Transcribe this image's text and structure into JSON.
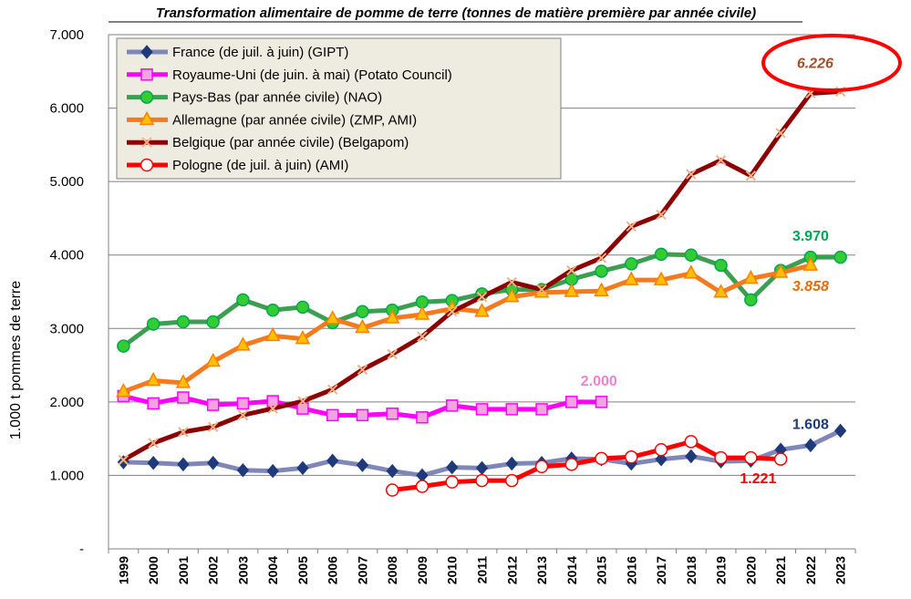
{
  "chart_data": {
    "type": "line",
    "title": "Transformation alimentaire de pomme de terre (tonnes de matière première  par année civile)",
    "xlabel": "",
    "ylabel": "1.000 t pommes de terre",
    "ylim": [
      0,
      7000
    ],
    "y_ticks": [
      "-",
      "1.000",
      "2.000",
      "3.000",
      "4.000",
      "5.000",
      "6.000",
      "7.000"
    ],
    "categories": [
      "1999",
      "2000",
      "2001",
      "2002",
      "2003",
      "2004",
      "2005",
      "2006",
      "2007",
      "2008",
      "2009",
      "2010",
      "2011",
      "2012",
      "2013",
      "2014",
      "2015",
      "2016",
      "2017",
      "2018",
      "2019",
      "2020",
      "2021",
      "2022",
      "2023"
    ],
    "grid": "horizontal",
    "legend_position": "top-left",
    "series": [
      {
        "name": "France (de juil. à juin) (GIPT)",
        "color": "#1F3A7A",
        "line_color": "#7F86B8",
        "marker": "diamond",
        "values": [
          1180,
          1170,
          1150,
          1170,
          1070,
          1060,
          1100,
          1200,
          1140,
          1060,
          1000,
          1110,
          1100,
          1160,
          1170,
          1230,
          1220,
          1160,
          1220,
          1260,
          1190,
          1200,
          1350,
          1410,
          1608
        ]
      },
      {
        "name": "Royaume-Uni (de juin. à mai) (Potato Council)",
        "color": "#FF00FF",
        "line_color": "#FF00FF",
        "marker": "square",
        "marker_fill": "#F5A3E0",
        "values": [
          2080,
          1980,
          2060,
          1960,
          1980,
          2010,
          1910,
          1820,
          1820,
          1840,
          1790,
          1950,
          1900,
          1900,
          1900,
          2000,
          2000,
          null,
          null,
          null,
          null,
          null,
          null,
          null,
          null
        ]
      },
      {
        "name": "Pays-Bas (par année civile) (NAO)",
        "color": "#00A651",
        "line_color": "#3C9E50",
        "marker": "circle",
        "marker_fill": "#33CC33",
        "values": [
          2760,
          3060,
          3090,
          3090,
          3390,
          3250,
          3290,
          3080,
          3230,
          3250,
          3360,
          3380,
          3470,
          3530,
          3530,
          3670,
          3780,
          3880,
          4010,
          4000,
          3860,
          3390,
          3790,
          3970,
          3970
        ]
      },
      {
        "name": "Allemagne (par année civile) (ZMP, AMI)",
        "color": "#FF7F00",
        "line_color": "#F47A20",
        "marker": "triangle",
        "marker_fill": "#FFC000",
        "values": [
          2140,
          2290,
          2260,
          2550,
          2770,
          2900,
          2860,
          3130,
          3010,
          3140,
          3190,
          3270,
          3230,
          3430,
          3490,
          3500,
          3510,
          3660,
          3660,
          3750,
          3490,
          3680,
          3760,
          3858,
          null
        ]
      },
      {
        "name": "Belgique (par année civile) (Belgapom)",
        "color": "#8B0000",
        "line_color": "#8B0000",
        "marker": "x",
        "marker_color": "#F4B183",
        "values": [
          1210,
          1440,
          1590,
          1660,
          1820,
          1910,
          2010,
          2170,
          2440,
          2650,
          2890,
          3230,
          3430,
          3630,
          3530,
          3790,
          3960,
          4390,
          4550,
          5100,
          5290,
          5080,
          5660,
          6200,
          6226
        ]
      },
      {
        "name": "Pologne (de juil. à juin) (AMI)",
        "color": "#FF0000",
        "line_color": "#FF0000",
        "marker": "circle-open",
        "marker_fill": "#FFFFFF",
        "values": [
          null,
          null,
          null,
          null,
          null,
          null,
          null,
          null,
          null,
          800,
          850,
          910,
          930,
          930,
          1120,
          1150,
          1230,
          1250,
          1350,
          1460,
          1240,
          1240,
          1221,
          null,
          null
        ]
      }
    ],
    "annotations": [
      {
        "text": "6.226",
        "color": "#A0522D",
        "italic": true,
        "series": "Belgique"
      },
      {
        "text": "3.970",
        "color": "#00A651",
        "italic": false,
        "series": "Pays-Bas"
      },
      {
        "text": "3.858",
        "color": "#E36C0A",
        "italic": true,
        "series": "Allemagne"
      },
      {
        "text": "2.000",
        "color": "#F080D0",
        "italic": false,
        "series": "Royaume-Uni"
      },
      {
        "text": "1.608",
        "color": "#1F3A7A",
        "italic": false,
        "series": "France"
      },
      {
        "text": "1.221",
        "color": "#FF0000",
        "italic": false,
        "series": "Pologne"
      }
    ],
    "highlight_color": "#FF0000"
  }
}
